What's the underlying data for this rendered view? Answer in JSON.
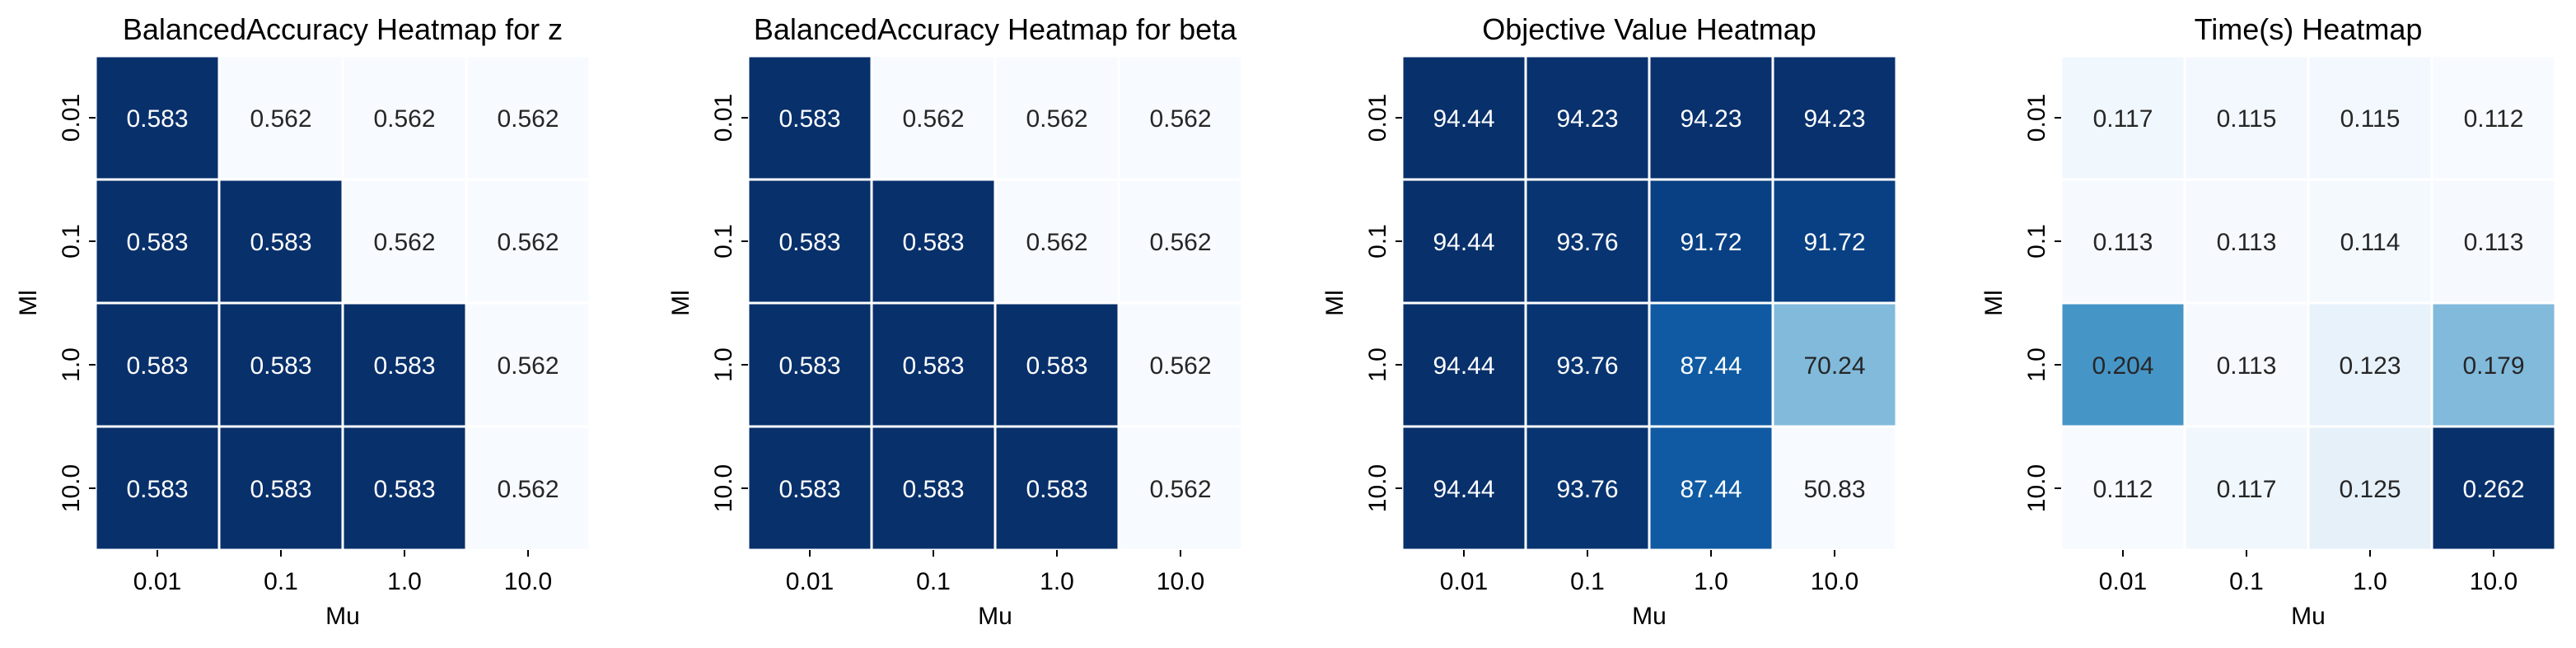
{
  "chart_data": [
    {
      "type": "heatmap",
      "title": "BalancedAccuracy Heatmap for z",
      "xlabel": "Mu",
      "ylabel": "Ml",
      "x_categories": [
        "0.01",
        "0.1",
        "1.0",
        "10.0"
      ],
      "y_categories": [
        "0.01",
        "0.1",
        "1.0",
        "10.0"
      ],
      "values": [
        [
          0.583,
          0.562,
          0.562,
          0.562
        ],
        [
          0.583,
          0.583,
          0.562,
          0.562
        ],
        [
          0.583,
          0.583,
          0.583,
          0.562
        ],
        [
          0.583,
          0.583,
          0.583,
          0.562
        ]
      ],
      "cell_labels": [
        [
          "0.583",
          "0.562",
          "0.562",
          "0.562"
        ],
        [
          "0.583",
          "0.583",
          "0.562",
          "0.562"
        ],
        [
          "0.583",
          "0.583",
          "0.583",
          "0.562"
        ],
        [
          "0.583",
          "0.583",
          "0.583",
          "0.562"
        ]
      ],
      "colormap": "Blues",
      "colorbar": false
    },
    {
      "type": "heatmap",
      "title": "BalancedAccuracy Heatmap for beta",
      "xlabel": "Mu",
      "ylabel": "Ml",
      "x_categories": [
        "0.01",
        "0.1",
        "1.0",
        "10.0"
      ],
      "y_categories": [
        "0.01",
        "0.1",
        "1.0",
        "10.0"
      ],
      "values": [
        [
          0.583,
          0.562,
          0.562,
          0.562
        ],
        [
          0.583,
          0.583,
          0.562,
          0.562
        ],
        [
          0.583,
          0.583,
          0.583,
          0.562
        ],
        [
          0.583,
          0.583,
          0.583,
          0.562
        ]
      ],
      "cell_labels": [
        [
          "0.583",
          "0.562",
          "0.562",
          "0.562"
        ],
        [
          "0.583",
          "0.583",
          "0.562",
          "0.562"
        ],
        [
          "0.583",
          "0.583",
          "0.583",
          "0.562"
        ],
        [
          "0.583",
          "0.583",
          "0.583",
          "0.562"
        ]
      ],
      "colormap": "Blues",
      "colorbar": false
    },
    {
      "type": "heatmap",
      "title": "Objective Value Heatmap",
      "xlabel": "Mu",
      "ylabel": "Ml",
      "x_categories": [
        "0.01",
        "0.1",
        "1.0",
        "10.0"
      ],
      "y_categories": [
        "0.01",
        "0.1",
        "1.0",
        "10.0"
      ],
      "values": [
        [
          94.44,
          94.23,
          94.23,
          94.23
        ],
        [
          94.44,
          93.76,
          91.72,
          91.72
        ],
        [
          94.44,
          93.76,
          87.44,
          70.24
        ],
        [
          94.44,
          93.76,
          87.44,
          50.83
        ]
      ],
      "cell_labels": [
        [
          "94.44",
          "94.23",
          "94.23",
          "94.23"
        ],
        [
          "94.44",
          "93.76",
          "91.72",
          "91.72"
        ],
        [
          "94.44",
          "93.76",
          "87.44",
          "70.24"
        ],
        [
          "94.44",
          "93.76",
          "87.44",
          "50.83"
        ]
      ],
      "colormap": "Blues",
      "colorbar": false
    },
    {
      "type": "heatmap",
      "title": "Time(s) Heatmap",
      "xlabel": "Mu",
      "ylabel": "Ml",
      "x_categories": [
        "0.01",
        "0.1",
        "1.0",
        "10.0"
      ],
      "y_categories": [
        "0.01",
        "0.1",
        "1.0",
        "10.0"
      ],
      "values": [
        [
          0.117,
          0.115,
          0.115,
          0.112
        ],
        [
          0.113,
          0.113,
          0.114,
          0.113
        ],
        [
          0.204,
          0.113,
          0.123,
          0.179
        ],
        [
          0.112,
          0.117,
          0.125,
          0.262
        ]
      ],
      "cell_labels": [
        [
          "0.117",
          "0.115",
          "0.115",
          "0.112"
        ],
        [
          "0.113",
          "0.113",
          "0.114",
          "0.113"
        ],
        [
          "0.204",
          "0.113",
          "0.123",
          "0.179"
        ],
        [
          "0.112",
          "0.117",
          "0.125",
          "0.262"
        ]
      ],
      "colormap": "Blues",
      "colorbar": false
    }
  ]
}
